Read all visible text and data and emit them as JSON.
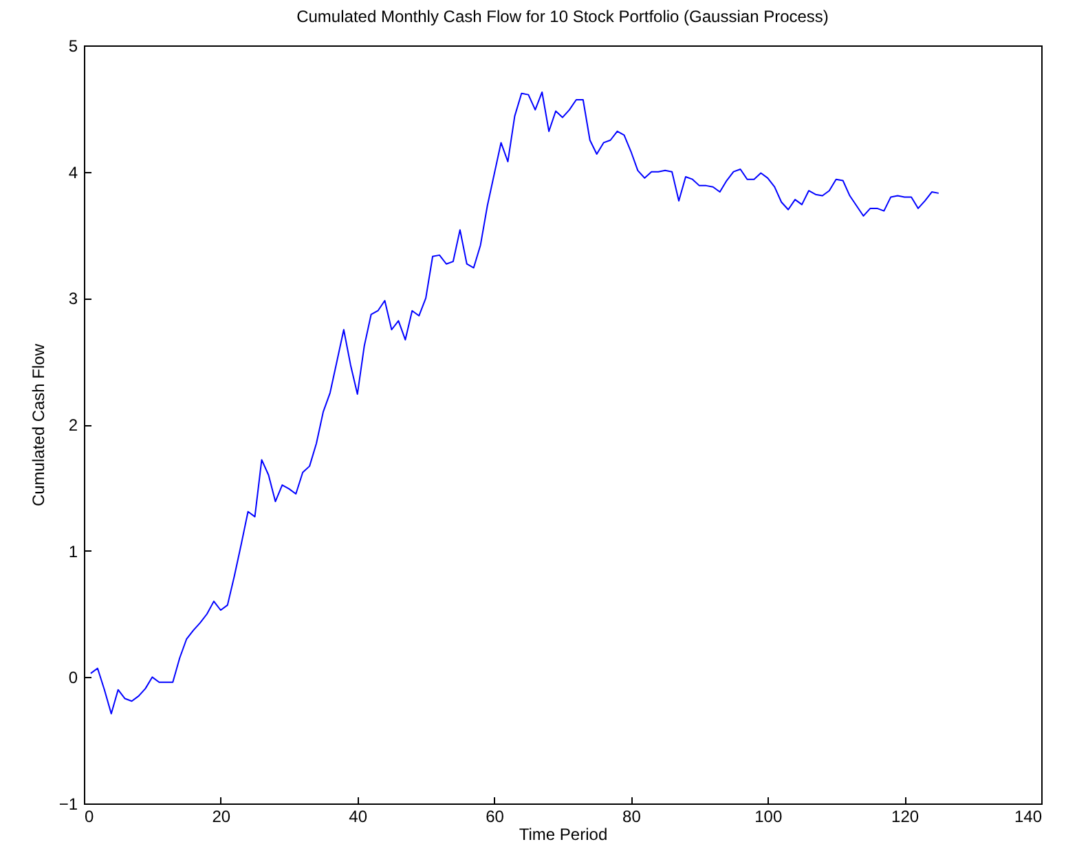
{
  "chart_data": {
    "type": "line",
    "title": "Cumulated Monthly Cash Flow for 10 Stock Portfolio (Gaussian Process)",
    "xlabel": "Time Period",
    "ylabel": "Cumulated Cash Flow",
    "xlim": [
      0,
      140
    ],
    "xticks": [
      0,
      20,
      40,
      60,
      80,
      100,
      120,
      140
    ],
    "ylim": [
      -1,
      5
    ],
    "yticks": [
      -1,
      0,
      1,
      2,
      3,
      4,
      5
    ],
    "grid": false,
    "marker": "none",
    "line_style": "solid",
    "x": [
      1,
      2,
      3,
      4,
      5,
      6,
      7,
      8,
      9,
      10,
      11,
      12,
      13,
      14,
      15,
      16,
      17,
      18,
      19,
      20,
      21,
      22,
      23,
      24,
      25,
      26,
      27,
      28,
      29,
      30,
      31,
      32,
      33,
      34,
      35,
      36,
      37,
      38,
      39,
      40,
      41,
      42,
      43,
      44,
      45,
      46,
      47,
      48,
      49,
      50,
      51,
      52,
      53,
      54,
      55,
      56,
      57,
      58,
      59,
      60,
      61,
      62,
      63,
      64,
      65,
      66,
      67,
      68,
      69,
      70,
      71,
      72,
      73,
      74,
      75,
      76,
      77,
      78,
      79,
      80,
      81,
      82,
      83,
      84,
      85,
      86,
      87,
      88,
      89,
      90,
      91,
      92,
      93,
      94,
      95,
      96,
      97,
      98,
      99,
      100,
      101,
      102,
      103,
      104,
      105,
      106,
      107,
      108,
      109,
      110,
      111,
      112,
      113,
      114,
      115,
      116,
      117,
      118,
      119,
      120,
      121,
      122,
      123,
      124,
      125
    ],
    "series": [
      {
        "color": "#0000ff",
        "values": [
          0.03,
          0.07,
          -0.1,
          -0.29,
          -0.1,
          -0.17,
          -0.19,
          -0.15,
          -0.09,
          0.0,
          -0.04,
          -0.04,
          -0.04,
          0.15,
          0.3,
          0.37,
          0.43,
          0.5,
          0.6,
          0.53,
          0.57,
          0.8,
          1.05,
          1.31,
          1.27,
          1.72,
          1.6,
          1.39,
          1.52,
          1.49,
          1.45,
          1.62,
          1.67,
          1.85,
          2.1,
          2.25,
          2.5,
          2.75,
          2.47,
          2.24,
          2.62,
          2.87,
          2.9,
          2.98,
          2.75,
          2.82,
          2.67,
          2.9,
          2.86,
          3.0,
          3.33,
          3.34,
          3.27,
          3.29,
          3.54,
          3.27,
          3.24,
          3.42,
          3.73,
          3.98,
          4.23,
          4.08,
          4.44,
          4.62,
          4.61,
          4.49,
          4.63,
          4.32,
          4.48,
          4.43,
          4.49,
          4.57,
          4.57,
          4.25,
          4.14,
          4.23,
          4.25,
          4.32,
          4.29,
          4.16,
          4.01,
          3.95,
          4.0,
          4.0,
          4.01,
          4.0,
          3.77,
          3.96,
          3.94,
          3.89,
          3.89,
          3.88,
          3.84,
          3.93,
          4.0,
          4.02,
          3.94,
          3.94,
          3.99,
          3.95,
          3.88,
          3.76,
          3.7,
          3.78,
          3.74,
          3.85,
          3.82,
          3.81,
          3.85,
          3.94,
          3.93,
          3.81,
          3.73,
          3.65,
          3.71,
          3.71,
          3.69,
          3.8,
          3.81,
          3.8,
          3.8,
          3.71,
          3.77,
          3.84,
          3.83
        ]
      }
    ]
  }
}
